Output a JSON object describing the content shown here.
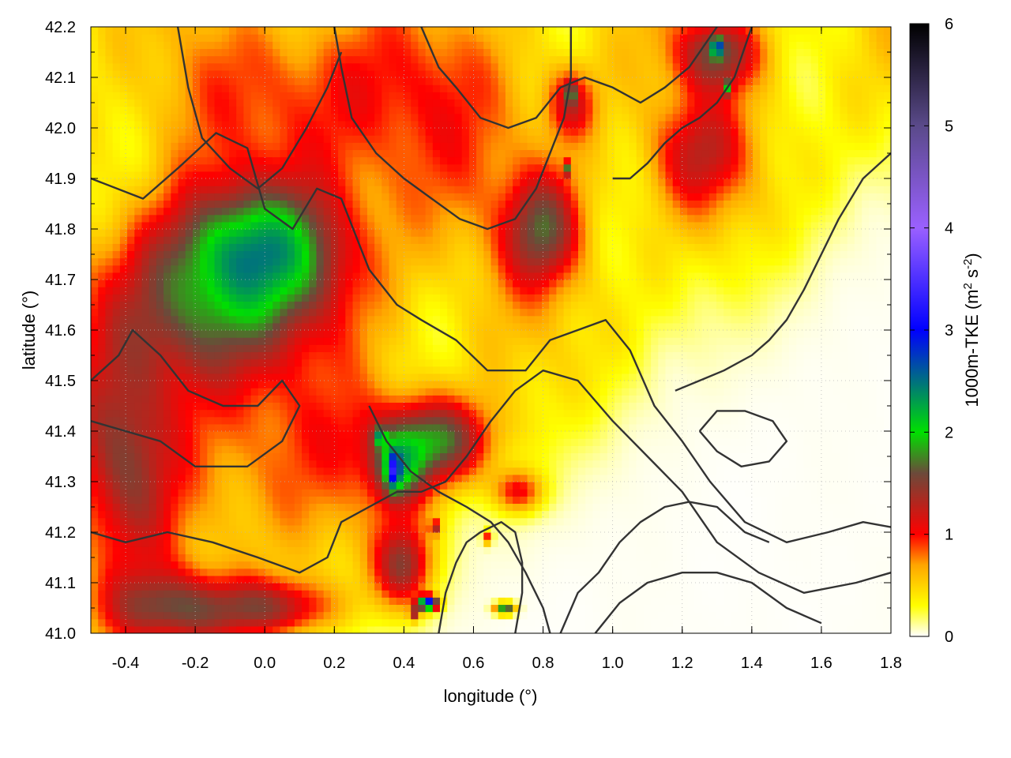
{
  "chart_data": {
    "type": "heatmap",
    "title": "",
    "xlabel": "longitude (°)",
    "ylabel": "latitude (°)",
    "colorbar_label": "1000m-TKE (m² s⁻²)",
    "colorbar_label_parts": {
      "base": "1000m-TKE (m",
      "sup1": "2",
      "mid": " s",
      "sup2": "-2",
      "end": ")"
    },
    "xlim": [
      -0.5,
      1.8
    ],
    "ylim": [
      41.0,
      42.2
    ],
    "zlim": [
      0,
      6
    ],
    "x_ticks": [
      "-0.4",
      "-0.2",
      "0.0",
      "0.2",
      "0.4",
      "0.6",
      "0.8",
      "1.0",
      "1.2",
      "1.4",
      "1.6",
      "1.8"
    ],
    "x_tick_values": [
      -0.4,
      -0.2,
      0.0,
      0.2,
      0.4,
      0.6,
      0.8,
      1.0,
      1.2,
      1.4,
      1.6,
      1.8
    ],
    "y_ticks": [
      "41.0",
      "41.1",
      "41.2",
      "41.3",
      "41.4",
      "41.5",
      "41.6",
      "41.7",
      "41.8",
      "41.9",
      "42.0",
      "42.1",
      "42.2"
    ],
    "y_tick_values": [
      41.0,
      41.1,
      41.2,
      41.3,
      41.4,
      41.5,
      41.6,
      41.7,
      41.8,
      41.9,
      42.0,
      42.1,
      42.2
    ],
    "colorbar_ticks": [
      "0",
      "1",
      "2",
      "3",
      "4",
      "5",
      "6"
    ],
    "colorbar_tick_values": [
      0,
      1,
      2,
      3,
      4,
      5,
      6
    ],
    "grid": true,
    "colormap": [
      {
        "v": 0.0,
        "color": "#ffffff"
      },
      {
        "v": 0.3,
        "color": "#ffff00"
      },
      {
        "v": 0.7,
        "color": "#ffa500"
      },
      {
        "v": 1.0,
        "color": "#ff0000"
      },
      {
        "v": 1.6,
        "color": "#6b4a3a"
      },
      {
        "v": 2.0,
        "color": "#00e000"
      },
      {
        "v": 3.0,
        "color": "#0000ff"
      },
      {
        "v": 4.0,
        "color": "#9a60ff"
      },
      {
        "v": 5.0,
        "color": "#5a4a8a"
      },
      {
        "v": 6.0,
        "color": "#000000"
      }
    ],
    "tke_features": [
      {
        "lon": -0.2,
        "lat": 41.65,
        "amp": 1.25,
        "sx": 0.18,
        "sy": 0.12
      },
      {
        "lon": -0.05,
        "lat": 41.78,
        "amp": 0.85,
        "sx": 0.15,
        "sy": 0.08
      },
      {
        "lon": 0.1,
        "lat": 41.72,
        "amp": 0.7,
        "sx": 0.15,
        "sy": 0.1
      },
      {
        "lon": -0.4,
        "lat": 41.35,
        "amp": 0.85,
        "sx": 0.1,
        "sy": 0.15
      },
      {
        "lon": -0.25,
        "lat": 41.05,
        "amp": 1.0,
        "sx": 0.15,
        "sy": 0.05
      },
      {
        "lon": 0.05,
        "lat": 41.05,
        "amp": 0.9,
        "sx": 0.12,
        "sy": 0.04
      },
      {
        "lon": 0.48,
        "lat": 41.38,
        "amp": 1.4,
        "sx": 0.12,
        "sy": 0.06
      },
      {
        "lon": 0.38,
        "lat": 41.32,
        "amp": 1.0,
        "sx": 0.05,
        "sy": 0.05
      },
      {
        "lon": 0.4,
        "lat": 41.13,
        "amp": 1.15,
        "sx": 0.06,
        "sy": 0.06
      },
      {
        "lon": 0.8,
        "lat": 41.8,
        "amp": 1.05,
        "sx": 0.08,
        "sy": 0.08
      },
      {
        "lon": 0.73,
        "lat": 41.28,
        "amp": 0.9,
        "sx": 0.05,
        "sy": 0.03
      },
      {
        "lon": 1.3,
        "lat": 42.15,
        "amp": 1.1,
        "sx": 0.08,
        "sy": 0.05
      },
      {
        "lon": 0.88,
        "lat": 42.05,
        "amp": 0.8,
        "sx": 0.05,
        "sy": 0.05
      },
      {
        "lon": 1.25,
        "lat": 41.95,
        "amp": 0.7,
        "sx": 0.1,
        "sy": 0.08
      },
      {
        "lon": 0.3,
        "lat": 41.95,
        "amp": 0.4,
        "sx": 0.3,
        "sy": 0.15
      },
      {
        "lon": 0.0,
        "lat": 41.35,
        "amp": 0.4,
        "sx": 0.25,
        "sy": 0.15
      },
      {
        "lon": 0.2,
        "lat": 42.1,
        "amp": 0.35,
        "sx": 0.3,
        "sy": 0.1
      }
    ],
    "tke_hotspots": [
      {
        "lon": 0.37,
        "lat": 41.32,
        "amp": 1.2,
        "sx": 0.012,
        "sy": 0.025
      },
      {
        "lon": 0.33,
        "lat": 41.39,
        "amp": 1.0,
        "sx": 0.012,
        "sy": 0.012
      },
      {
        "lon": 0.47,
        "lat": 41.06,
        "amp": 2.8,
        "sx": 0.02,
        "sy": 0.01
      },
      {
        "lon": 0.43,
        "lat": 41.04,
        "amp": 1.0,
        "sx": 0.01,
        "sy": 0.01
      },
      {
        "lon": 0.69,
        "lat": 41.05,
        "amp": 2.0,
        "sx": 0.02,
        "sy": 0.008
      },
      {
        "lon": 1.3,
        "lat": 42.16,
        "amp": 1.6,
        "sx": 0.012,
        "sy": 0.012
      },
      {
        "lon": 0.88,
        "lat": 42.07,
        "amp": 1.2,
        "sx": 0.008,
        "sy": 0.015
      },
      {
        "lon": 1.33,
        "lat": 42.08,
        "amp": 1.0,
        "sx": 0.008,
        "sy": 0.01
      },
      {
        "lon": 0.64,
        "lat": 41.19,
        "amp": 0.9,
        "sx": 0.01,
        "sy": 0.01
      },
      {
        "lon": 0.49,
        "lat": 41.21,
        "amp": 0.9,
        "sx": 0.01,
        "sy": 0.01
      },
      {
        "lon": 0.87,
        "lat": 41.92,
        "amp": 1.0,
        "sx": 0.008,
        "sy": 0.01
      }
    ],
    "low_zone_lat": {
      "start": 41.6,
      "end": 41.15
    },
    "contours": [
      [
        [
          -0.5,
          41.9
        ],
        [
          -0.35,
          41.86
        ],
        [
          -0.25,
          41.92
        ],
        [
          -0.14,
          41.99
        ],
        [
          -0.05,
          41.96
        ],
        [
          0.0,
          41.84
        ],
        [
          0.08,
          41.8
        ],
        [
          0.15,
          41.88
        ],
        [
          0.22,
          41.86
        ],
        [
          0.3,
          41.72
        ],
        [
          0.38,
          41.65
        ],
        [
          0.45,
          41.62
        ],
        [
          0.55,
          41.58
        ],
        [
          0.64,
          41.52
        ],
        [
          0.75,
          41.52
        ],
        [
          0.82,
          41.58
        ],
        [
          0.9,
          41.6
        ],
        [
          0.98,
          41.62
        ],
        [
          1.05,
          41.56
        ],
        [
          1.12,
          41.45
        ],
        [
          1.2,
          41.38
        ],
        [
          1.28,
          41.3
        ],
        [
          1.38,
          41.22
        ],
        [
          1.5,
          41.18
        ],
        [
          1.62,
          41.2
        ],
        [
          1.72,
          41.22
        ],
        [
          1.8,
          41.21
        ]
      ],
      [
        [
          -0.5,
          41.5
        ],
        [
          -0.42,
          41.55
        ],
        [
          -0.38,
          41.6
        ],
        [
          -0.3,
          41.55
        ],
        [
          -0.22,
          41.48
        ],
        [
          -0.12,
          41.45
        ],
        [
          -0.02,
          41.45
        ],
        [
          0.05,
          41.5
        ],
        [
          0.1,
          41.45
        ],
        [
          0.05,
          41.38
        ],
        [
          -0.05,
          41.33
        ],
        [
          -0.2,
          41.33
        ],
        [
          -0.3,
          41.38
        ],
        [
          -0.4,
          41.4
        ],
        [
          -0.5,
          41.42
        ]
      ],
      [
        [
          -0.5,
          41.2
        ],
        [
          -0.4,
          41.18
        ],
        [
          -0.28,
          41.2
        ],
        [
          -0.15,
          41.18
        ],
        [
          -0.02,
          41.15
        ],
        [
          0.1,
          41.12
        ],
        [
          0.18,
          41.15
        ],
        [
          0.22,
          41.22
        ],
        [
          0.3,
          41.25
        ],
        [
          0.38,
          41.28
        ],
        [
          0.45,
          41.28
        ],
        [
          0.52,
          41.3
        ],
        [
          0.58,
          41.35
        ],
        [
          0.65,
          41.42
        ],
        [
          0.72,
          41.48
        ],
        [
          0.8,
          41.52
        ],
        [
          0.9,
          41.5
        ],
        [
          1.0,
          41.42
        ],
        [
          1.1,
          41.35
        ],
        [
          1.2,
          41.28
        ],
        [
          1.3,
          41.18
        ],
        [
          1.42,
          41.12
        ],
        [
          1.55,
          41.08
        ],
        [
          1.7,
          41.1
        ],
        [
          1.8,
          41.12
        ]
      ],
      [
        [
          0.85,
          41.0
        ],
        [
          0.9,
          41.08
        ],
        [
          0.96,
          41.12
        ],
        [
          1.02,
          41.18
        ],
        [
          1.08,
          41.22
        ],
        [
          1.15,
          41.25
        ],
        [
          1.22,
          41.26
        ],
        [
          1.3,
          41.25
        ],
        [
          1.38,
          41.2
        ],
        [
          1.45,
          41.18
        ]
      ],
      [
        [
          0.95,
          41.0
        ],
        [
          1.02,
          41.06
        ],
        [
          1.1,
          41.1
        ],
        [
          1.2,
          41.12
        ],
        [
          1.3,
          41.12
        ],
        [
          1.4,
          41.1
        ],
        [
          1.5,
          41.05
        ],
        [
          1.6,
          41.02
        ]
      ],
      [
        [
          0.2,
          42.2
        ],
        [
          0.22,
          42.12
        ],
        [
          0.25,
          42.02
        ],
        [
          0.32,
          41.95
        ],
        [
          0.4,
          41.9
        ],
        [
          0.48,
          41.86
        ],
        [
          0.56,
          41.82
        ],
        [
          0.64,
          41.8
        ],
        [
          0.72,
          41.82
        ],
        [
          0.78,
          41.88
        ],
        [
          0.82,
          41.95
        ],
        [
          0.86,
          42.02
        ],
        [
          0.88,
          42.1
        ],
        [
          0.88,
          42.2
        ]
      ],
      [
        [
          1.4,
          42.2
        ],
        [
          1.35,
          42.1
        ],
        [
          1.3,
          42.05
        ],
        [
          1.25,
          42.02
        ],
        [
          1.2,
          42.0
        ],
        [
          1.15,
          41.97
        ],
        [
          1.1,
          41.93
        ],
        [
          1.05,
          41.9
        ],
        [
          1.0,
          41.9
        ]
      ],
      [
        [
          1.8,
          41.95
        ],
        [
          1.72,
          41.9
        ],
        [
          1.65,
          41.82
        ],
        [
          1.6,
          41.75
        ],
        [
          1.55,
          41.68
        ],
        [
          1.5,
          41.62
        ],
        [
          1.45,
          41.58
        ],
        [
          1.4,
          41.55
        ],
        [
          1.32,
          41.52
        ],
        [
          1.25,
          41.5
        ],
        [
          1.18,
          41.48
        ]
      ],
      [
        [
          -0.25,
          42.2
        ],
        [
          -0.22,
          42.08
        ],
        [
          -0.18,
          41.98
        ],
        [
          -0.1,
          41.92
        ],
        [
          -0.02,
          41.88
        ],
        [
          0.05,
          41.92
        ],
        [
          0.12,
          42.0
        ],
        [
          0.18,
          42.08
        ],
        [
          0.22,
          42.15
        ]
      ],
      [
        [
          0.45,
          42.2
        ],
        [
          0.5,
          42.12
        ],
        [
          0.55,
          42.08
        ],
        [
          0.62,
          42.02
        ],
        [
          0.7,
          42.0
        ],
        [
          0.78,
          42.02
        ],
        [
          0.85,
          42.08
        ],
        [
          0.92,
          42.1
        ],
        [
          1.0,
          42.08
        ],
        [
          1.08,
          42.05
        ],
        [
          1.15,
          42.08
        ],
        [
          1.22,
          42.12
        ],
        [
          1.28,
          42.18
        ],
        [
          1.3,
          42.2
        ]
      ],
      [
        [
          0.3,
          41.45
        ],
        [
          0.35,
          41.38
        ],
        [
          0.42,
          41.32
        ],
        [
          0.5,
          41.28
        ],
        [
          0.58,
          41.25
        ],
        [
          0.65,
          41.22
        ],
        [
          0.7,
          41.18
        ],
        [
          0.75,
          41.12
        ],
        [
          0.8,
          41.05
        ],
        [
          0.82,
          41.0
        ]
      ],
      [
        [
          1.25,
          41.4
        ],
        [
          1.3,
          41.36
        ],
        [
          1.37,
          41.33
        ],
        [
          1.45,
          41.34
        ],
        [
          1.5,
          41.38
        ],
        [
          1.46,
          41.42
        ],
        [
          1.38,
          41.44
        ],
        [
          1.3,
          41.44
        ],
        [
          1.25,
          41.4
        ]
      ],
      [
        [
          0.5,
          41.0
        ],
        [
          0.52,
          41.08
        ],
        [
          0.55,
          41.14
        ],
        [
          0.58,
          41.18
        ],
        [
          0.62,
          41.2
        ],
        [
          0.68,
          41.22
        ],
        [
          0.72,
          41.2
        ],
        [
          0.74,
          41.14
        ],
        [
          0.74,
          41.08
        ],
        [
          0.72,
          41.0
        ]
      ]
    ]
  }
}
